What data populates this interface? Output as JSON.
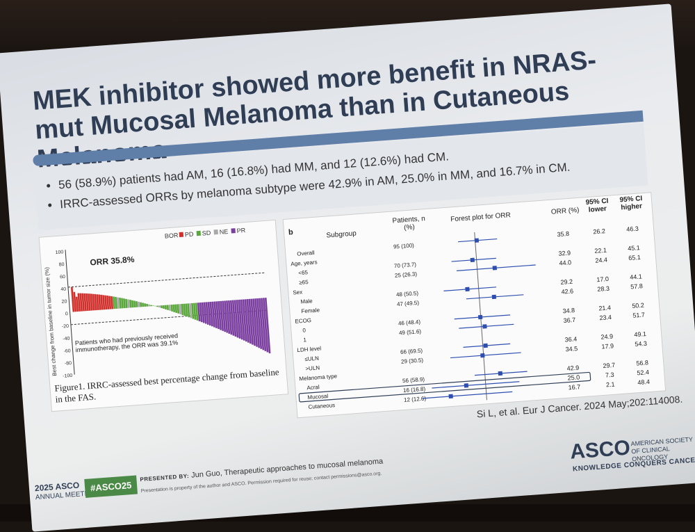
{
  "slide": {
    "title": "MEK inhibitor showed more benefit in NRAS-mut Mucosal Melanoma than in Cutaneous Melanoma",
    "bullets": [
      "56 (58.9%) patients had AM, 16 (16.8%) had MM, and 12 (12.6%) had CM.",
      "IRRC-assessed ORRs by melanoma subtype were 42.9% in AM, 25.0% in MM, and 16.7% in CM."
    ],
    "citation": "Si L, et al. Eur J Cancer. 2024 May;202:114008."
  },
  "waterfall": {
    "legend_title": "BOR",
    "legend": [
      {
        "label": "PD",
        "color": "#d0312d"
      },
      {
        "label": "SD",
        "color": "#5aa83c"
      },
      {
        "label": "NE",
        "color": "#a9a9a9"
      },
      {
        "label": "PR",
        "color": "#7b3fa0"
      }
    ],
    "ylabel": "Best change from baseline in tumor size (%)",
    "yticks": [
      "100",
      "80",
      "60",
      "40",
      "20",
      "0",
      "-20",
      "-40",
      "-60",
      "-80",
      "-100"
    ],
    "orr_label": "ORR 35.8%",
    "note": "Patients who had previously received immunotherapy, the ORR was 39.1%",
    "caption": "Figure1. IRRC-assessed best percentage change from baseline in the FAS."
  },
  "forest": {
    "panel_label": "b",
    "headers": {
      "subgroup": "Subgroup",
      "patients": "Patients, n (%)",
      "plot": "Forest plot for ORR",
      "orr": "ORR (%)",
      "ci_lower": "95% CI lower",
      "ci_higher": "95% CI higher"
    },
    "rows": [
      {
        "label": "Overall",
        "patients": "95 (100)",
        "orr": "35.8",
        "lower": "26.2",
        "higher": "46.3"
      },
      {
        "label": "Age, years",
        "patients": "",
        "orr": "",
        "lower": "",
        "higher": ""
      },
      {
        "label": "<65",
        "patients": "70 (73.7)",
        "orr": "32.9",
        "lower": "22.1",
        "higher": "45.1"
      },
      {
        "label": "≥65",
        "patients": "25 (26.3)",
        "orr": "44.0",
        "lower": "24.4",
        "higher": "65.1"
      },
      {
        "label": "Sex",
        "patients": "",
        "orr": "",
        "lower": "",
        "higher": ""
      },
      {
        "label": "Male",
        "patients": "48 (50.5)",
        "orr": "29.2",
        "lower": "17.0",
        "higher": "44.1"
      },
      {
        "label": "Female",
        "patients": "47 (49.5)",
        "orr": "42.6",
        "lower": "28.3",
        "higher": "57.8"
      },
      {
        "label": "ECOG",
        "patients": "",
        "orr": "",
        "lower": "",
        "higher": ""
      },
      {
        "label": "0",
        "patients": "46 (48.4)",
        "orr": "34.8",
        "lower": "21.4",
        "higher": "50.2"
      },
      {
        "label": "1",
        "patients": "49 (51.6)",
        "orr": "36.7",
        "lower": "23.4",
        "higher": "51.7"
      },
      {
        "label": "LDH level",
        "patients": "",
        "orr": "",
        "lower": "",
        "higher": ""
      },
      {
        "label": "≤ULN",
        "patients": "66 (69.5)",
        "orr": "36.4",
        "lower": "24.9",
        "higher": "49.1"
      },
      {
        "label": ">ULN",
        "patients": "29 (30.5)",
        "orr": "34.5",
        "lower": "17.9",
        "higher": "54.3"
      },
      {
        "label": "Melanoma type",
        "patients": "",
        "orr": "",
        "lower": "",
        "higher": ""
      },
      {
        "label": "Acral",
        "patients": "56 (58.9)",
        "orr": "42.9",
        "lower": "29.7",
        "higher": "56.8"
      },
      {
        "label": "Mucosal",
        "patients": "16 (16.8)",
        "orr": "25.0",
        "lower": "7.3",
        "higher": "52.4",
        "highlight": true
      },
      {
        "label": "Cutaneous",
        "patients": "12 (12.6)",
        "orr": "16.7",
        "lower": "2.1",
        "higher": "48.4"
      }
    ]
  },
  "footer": {
    "meeting_year": "2025 ASCO",
    "meeting_name": "ANNUAL MEETING",
    "hashtag": "#ASCO25",
    "presented_by_label": "PRESENTED BY:",
    "presenter": "Jun Guo, Therapeutic approaches to mucosal melanoma",
    "disclaimer": "Presentation is property of the author and ASCO. Permission required for reuse; contact permissions@asco.org.",
    "logo": "ASCO",
    "org_name": "AMERICAN SOCIETY OF CLINICAL ONCOLOGY",
    "tagline": "KNOWLEDGE CONQUERS CANCER"
  },
  "colors": {
    "title": "#2f3e55",
    "accent_bar": "#5f7ea8",
    "forest_marker": "#2e4fb0",
    "hashtag_bg": "#4a8a46"
  }
}
